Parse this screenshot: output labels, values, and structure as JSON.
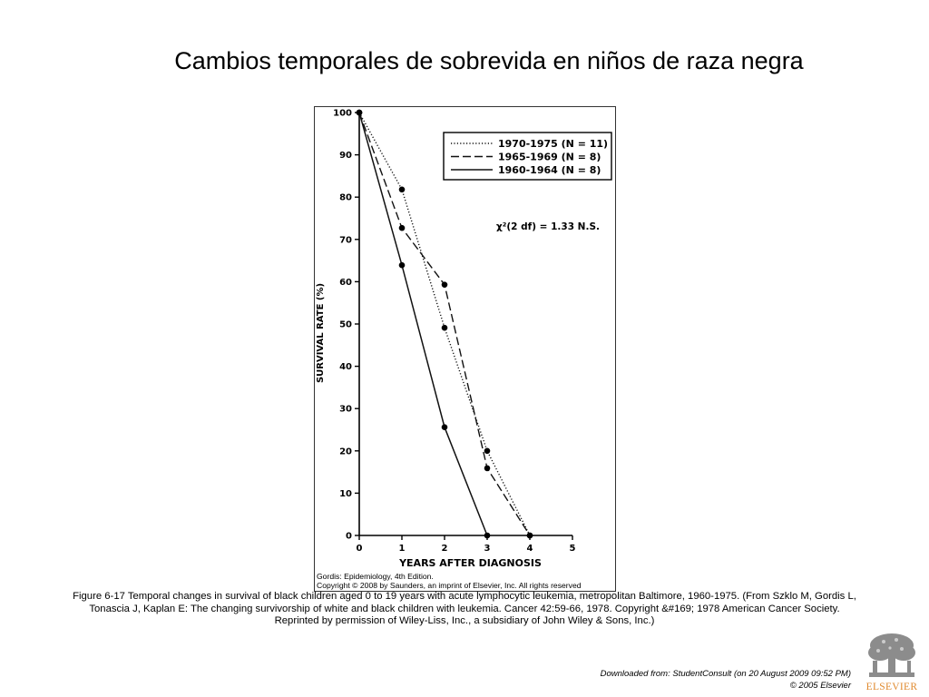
{
  "slide": {
    "title": "Cambios temporales de sobrevida en niños de raza negra"
  },
  "figure": {
    "credit_line_1": "Gordis: Epidemiology, 4th Edition.",
    "credit_line_2": "Copyright © 2008 by Saunders, an imprint of Elsevier, Inc. All rights reserved"
  },
  "caption": {
    "text": "Figure 6-17 Temporal changes in survival of black children aged 0 to 19 years with acute lymphocytic leukemia, metropolitan Baltimore, 1960-1975. (From Szklo M, Gordis L, Tonascia J, Kaplan E: The changing survivorship of white and black children with leukemia. Cancer 42:59-66, 1978. Copyright &#169; 1978 American Cancer Society. Reprinted by permission of Wiley-Liss, Inc., a subsidiary of John Wiley & Sons, Inc.)"
  },
  "footer": {
    "downloaded": "Downloaded from: StudentConsult (on 20 August 2009 09:52 PM)",
    "copyright": "© 2005 Elsevier",
    "logo_text": "ELSEVIER",
    "logo_color": "#e08a2e"
  },
  "chart_data": {
    "type": "line",
    "xlabel": "YEARS AFTER DIAGNOSIS",
    "ylabel": "SURVIVAL RATE (%)",
    "xlim": [
      0,
      5
    ],
    "ylim": [
      0,
      100
    ],
    "x_ticks": [
      0,
      1,
      2,
      3,
      4,
      5
    ],
    "y_ticks": [
      0,
      10,
      20,
      30,
      40,
      50,
      60,
      70,
      80,
      90,
      100
    ],
    "grid": false,
    "legend_position": "top-right",
    "annotation": "χ²(2 df) = 1.33 N.S.",
    "series": [
      {
        "name": "1970-1975 (N = 11)",
        "style": "dotted",
        "x": [
          0,
          1,
          2,
          3,
          4
        ],
        "y": [
          100,
          81.8,
          49.1,
          20,
          0
        ]
      },
      {
        "name": "1965-1969 (N = 8)",
        "style": "dashed",
        "x": [
          0,
          1,
          2,
          3,
          4
        ],
        "y": [
          100,
          72.7,
          59.3,
          15.9,
          0
        ]
      },
      {
        "name": "1960-1964 (N = 8)",
        "style": "solid",
        "x": [
          0,
          1,
          2,
          3
        ],
        "y": [
          100,
          63.9,
          25.6,
          0
        ]
      }
    ]
  }
}
